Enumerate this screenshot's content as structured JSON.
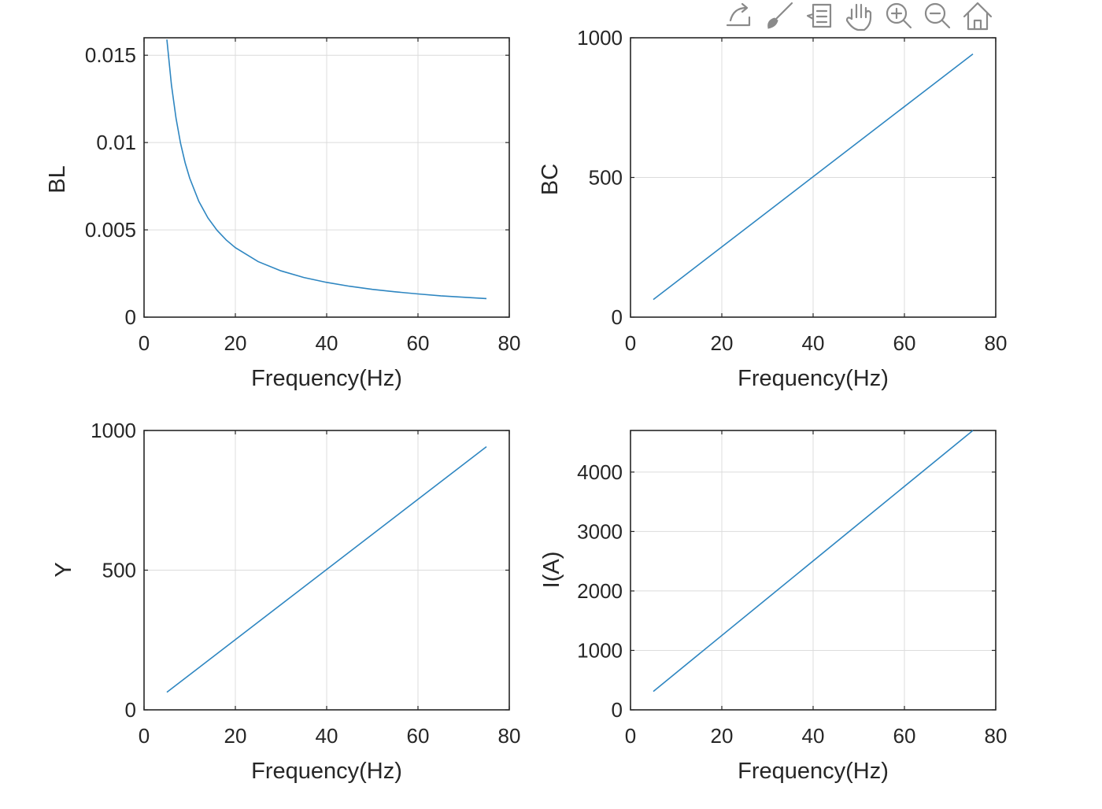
{
  "toolbar": {
    "icons": [
      "export-icon",
      "brush-icon",
      "data-tips-icon",
      "pan-icon",
      "zoom-in-icon",
      "zoom-out-icon",
      "home-icon"
    ],
    "icon_color": "#8a8a8a"
  },
  "colors": {
    "series": "#2e86c1",
    "axes": "#262626",
    "grid": "#dcdcdc"
  },
  "chart_data": [
    {
      "type": "line",
      "title": "",
      "xlabel": "Frequency(Hz)",
      "ylabel": "BL",
      "xlim": [
        0,
        80
      ],
      "ylim": [
        0,
        0.016
      ],
      "xticks": [
        0,
        20,
        40,
        60,
        80
      ],
      "yticks": [
        0,
        0.005,
        0.01,
        0.015
      ],
      "ytick_labels": [
        "0",
        "0.005",
        "0.01",
        "0.015"
      ],
      "grid": true,
      "series": [
        {
          "x": [
            5,
            6,
            7,
            8,
            9,
            10,
            12,
            14,
            16,
            18,
            20,
            25,
            30,
            35,
            40,
            45,
            50,
            55,
            60,
            65,
            70,
            75
          ],
          "y": [
            0.0159,
            0.0133,
            0.0114,
            0.00995,
            0.00884,
            0.00796,
            0.00663,
            0.00568,
            0.00497,
            0.00442,
            0.00398,
            0.00318,
            0.00265,
            0.00227,
            0.00199,
            0.00177,
            0.00159,
            0.00145,
            0.00133,
            0.00122,
            0.00114,
            0.00106
          ]
        }
      ]
    },
    {
      "type": "line",
      "title": "",
      "xlabel": "Frequency(Hz)",
      "ylabel": "BC",
      "xlim": [
        0,
        80
      ],
      "ylim": [
        0,
        1000
      ],
      "xticks": [
        0,
        20,
        40,
        60,
        80
      ],
      "yticks": [
        0,
        500,
        1000
      ],
      "ytick_labels": [
        "0",
        "500",
        "1000"
      ],
      "grid": true,
      "series": [
        {
          "x": [
            5,
            75
          ],
          "y": [
            63,
            942
          ]
        }
      ]
    },
    {
      "type": "line",
      "title": "",
      "xlabel": "Frequency(Hz)",
      "ylabel": "Y",
      "xlim": [
        0,
        80
      ],
      "ylim": [
        0,
        1000
      ],
      "xticks": [
        0,
        20,
        40,
        60,
        80
      ],
      "yticks": [
        0,
        500,
        1000
      ],
      "ytick_labels": [
        "0",
        "500",
        "1000"
      ],
      "grid": true,
      "series": [
        {
          "x": [
            5,
            75
          ],
          "y": [
            63,
            942
          ]
        }
      ]
    },
    {
      "type": "line",
      "title": "",
      "xlabel": "Frequency(Hz)",
      "ylabel": "I(A)",
      "xlim": [
        0,
        80
      ],
      "ylim": [
        0,
        4700
      ],
      "xticks": [
        0,
        20,
        40,
        60,
        80
      ],
      "yticks": [
        0,
        1000,
        2000,
        3000,
        4000
      ],
      "ytick_labels": [
        "0",
        "1000",
        "2000",
        "3000",
        "4000"
      ],
      "grid": true,
      "series": [
        {
          "x": [
            5,
            75
          ],
          "y": [
            310,
            4700
          ]
        }
      ]
    }
  ]
}
